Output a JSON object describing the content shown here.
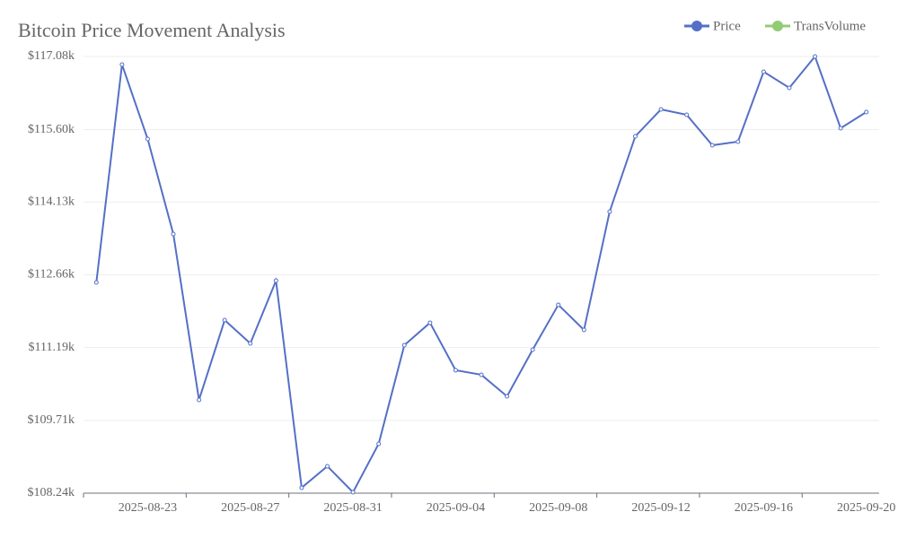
{
  "chart_data": {
    "type": "line",
    "title": "Bitcoin Price Movement Analysis",
    "categories": [
      null,
      null,
      "2025-08-23",
      null,
      null,
      null,
      "2025-08-27",
      null,
      null,
      null,
      "2025-08-31",
      null,
      null,
      null,
      "2025-09-04",
      null,
      null,
      null,
      "2025-09-08",
      null,
      null,
      null,
      "2025-09-12",
      null,
      null,
      null,
      "2025-09-16",
      null,
      null,
      null,
      "2025-09-20"
    ],
    "series": [
      {
        "name": "Price",
        "color": "#5470c6",
        "values": [
          112506,
          116917,
          115410,
          113486,
          110128,
          111743,
          111272,
          112542,
          108350,
          108785,
          108259,
          109239,
          111236,
          111690,
          110728,
          110637,
          110201,
          111145,
          112053,
          111545,
          113940,
          115465,
          116009,
          115900,
          115283,
          115356,
          116771,
          116445,
          117080,
          115628,
          115955
        ]
      },
      {
        "name": "TransVolume",
        "color": "#91cc75",
        "values": [
          null,
          null,
          null,
          null,
          null,
          null,
          null,
          null,
          null,
          null,
          null,
          null,
          null,
          null,
          null,
          null,
          null,
          null,
          null,
          null,
          null,
          null,
          null,
          null,
          null,
          null,
          null,
          null,
          null,
          null,
          null
        ]
      }
    ],
    "ylim": [
      108240,
      117080
    ],
    "yticks": [
      {
        "value": 108240,
        "label": "$108.24k"
      },
      {
        "value": 109713,
        "label": "$109.71k"
      },
      {
        "value": 111187,
        "label": "$111.19k"
      },
      {
        "value": 112660,
        "label": "$112.66k"
      },
      {
        "value": 114133,
        "label": "$114.13k"
      },
      {
        "value": 115600,
        "label": "$115.60k"
      },
      {
        "value": 117080,
        "label": "$117.08k"
      }
    ],
    "grid": true,
    "legend": "top-right"
  }
}
